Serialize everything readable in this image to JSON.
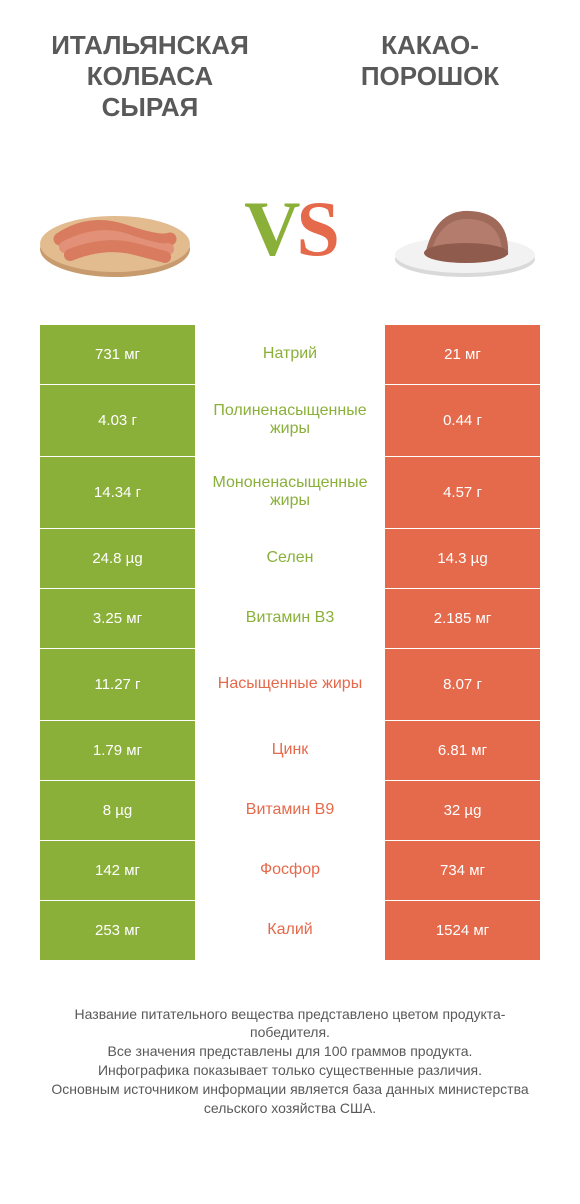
{
  "header": {
    "left_title": "ИТАЛЬЯНСКАЯ КОЛБАСА СЫРАЯ",
    "right_title": "КАКАО-ПОРОШОК"
  },
  "vs": {
    "v": "V",
    "s": "S"
  },
  "colors": {
    "green": "#8ab03a",
    "orange": "#e56a4c",
    "text_gray": "#595959",
    "background": "#ffffff"
  },
  "table": {
    "left_color": "green",
    "right_color": "orange",
    "rows": [
      {
        "left": "731 мг",
        "label": "Натрий",
        "right": "21 мг",
        "winner": "left",
        "tall": false
      },
      {
        "left": "4.03 г",
        "label": "Полиненасыщенные жиры",
        "right": "0.44 г",
        "winner": "left",
        "tall": true
      },
      {
        "left": "14.34 г",
        "label": "Мононенасыщенные жиры",
        "right": "4.57 г",
        "winner": "left",
        "tall": true
      },
      {
        "left": "24.8 µg",
        "label": "Селен",
        "right": "14.3 µg",
        "winner": "left",
        "tall": false
      },
      {
        "left": "3.25 мг",
        "label": "Витамин B3",
        "right": "2.185 мг",
        "winner": "left",
        "tall": false
      },
      {
        "left": "11.27 г",
        "label": "Насыщенные жиры",
        "right": "8.07 г",
        "winner": "right",
        "tall": true
      },
      {
        "left": "1.79 мг",
        "label": "Цинк",
        "right": "6.81 мг",
        "winner": "right",
        "tall": false
      },
      {
        "left": "8 µg",
        "label": "Витамин B9",
        "right": "32 µg",
        "winner": "right",
        "tall": false
      },
      {
        "left": "142 мг",
        "label": "Фосфор",
        "right": "734 мг",
        "winner": "right",
        "tall": false
      },
      {
        "left": "253 мг",
        "label": "Калий",
        "right": "1524 мг",
        "winner": "right",
        "tall": false
      }
    ]
  },
  "footer": {
    "line1": "Название питательного вещества представлено цветом продукта-победителя.",
    "line2": "Все значения представлены для 100 граммов продукта.",
    "line3": "Инфографика показывает только существенные различия.",
    "line4": "Основным источником информации является база данных министерства сельского хозяйства США."
  }
}
